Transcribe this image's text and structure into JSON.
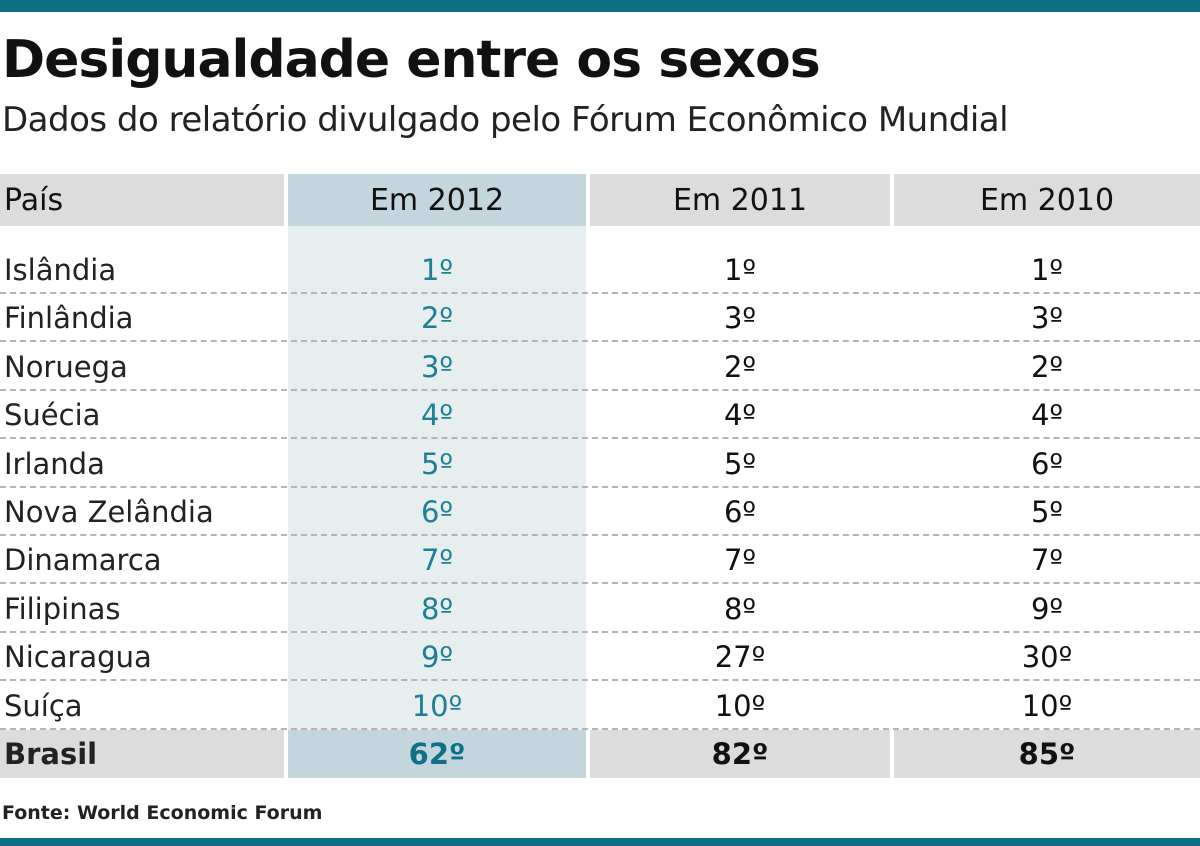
{
  "title": "Desigualdade entre os sexos",
  "subtitle": "Dados do relatório divulgado pelo Fórum Econômico Mundial",
  "source": "Fonte: World Economic Forum",
  "colors": {
    "accent": "#0f6f86",
    "highlight_text": "#1f7f94",
    "header_bg": "#dcdcdc",
    "highlight_bg": "#c4d6dd"
  },
  "chart_data": {
    "type": "table",
    "columns": [
      "País",
      "Em 2012",
      "Em 2011",
      "Em 2010"
    ],
    "rows": [
      {
        "country": "Islândia",
        "y2012": "1º",
        "y2011": "1º",
        "y2010": "1º"
      },
      {
        "country": "Finlândia",
        "y2012": "2º",
        "y2011": "3º",
        "y2010": "3º"
      },
      {
        "country": "Noruega",
        "y2012": "3º",
        "y2011": "2º",
        "y2010": "2º"
      },
      {
        "country": "Suécia",
        "y2012": "4º",
        "y2011": "4º",
        "y2010": "4º"
      },
      {
        "country": "Irlanda",
        "y2012": "5º",
        "y2011": "5º",
        "y2010": "6º"
      },
      {
        "country": "Nova Zelândia",
        "y2012": "6º",
        "y2011": "6º",
        "y2010": "5º"
      },
      {
        "country": "Dinamarca",
        "y2012": "7º",
        "y2011": "7º",
        "y2010": "7º"
      },
      {
        "country": "Filipinas",
        "y2012": "8º",
        "y2011": "8º",
        "y2010": "9º"
      },
      {
        "country": "Nicaragua",
        "y2012": "9º",
        "y2011": "27º",
        "y2010": "30º"
      },
      {
        "country": "Suíça",
        "y2012": "10º",
        "y2011": "10º",
        "y2010": "10º"
      },
      {
        "country": "Brasil",
        "y2012": "62º",
        "y2011": "82º",
        "y2010": "85º"
      }
    ]
  }
}
